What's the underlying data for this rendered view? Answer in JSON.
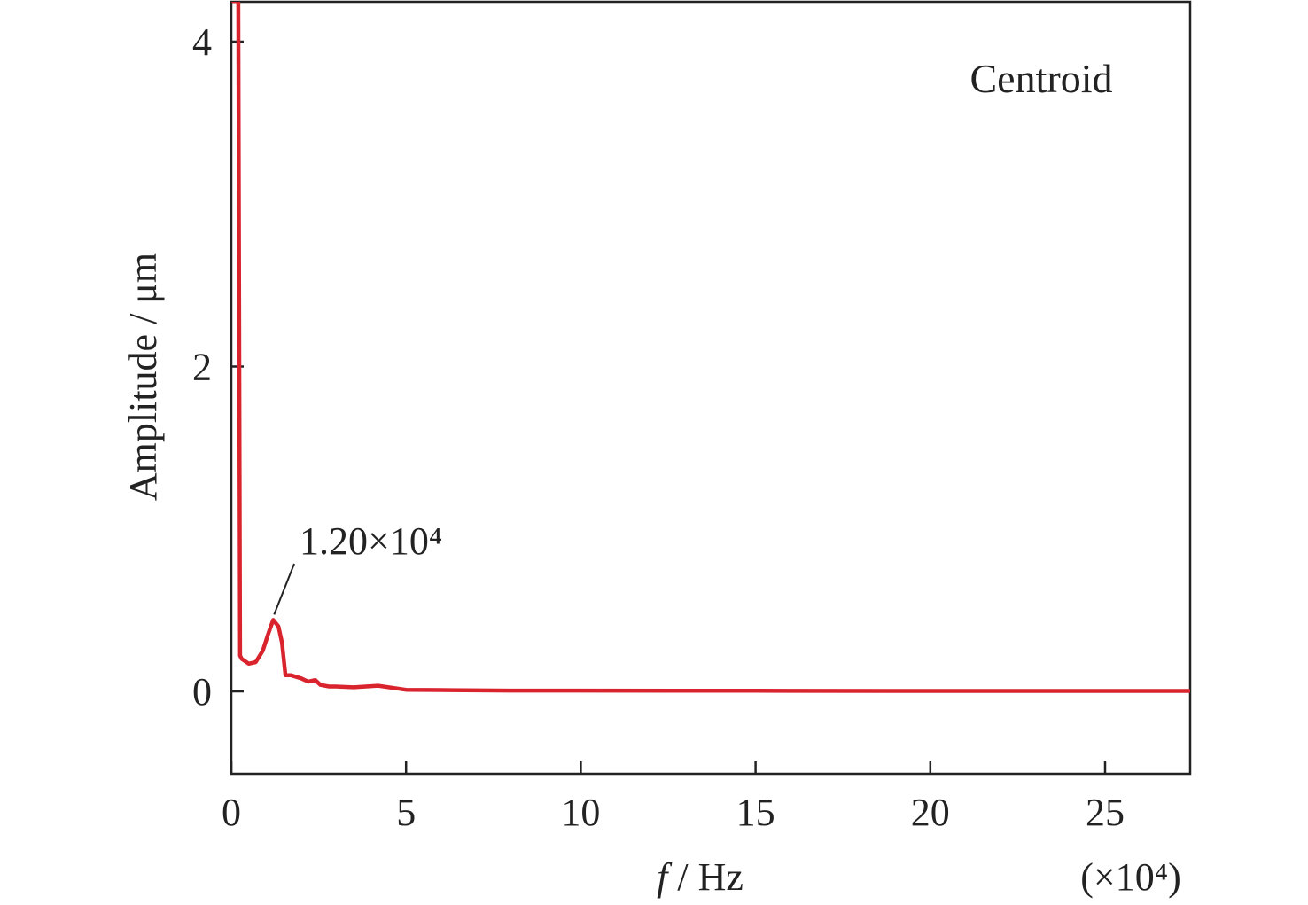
{
  "chart_data": {
    "type": "line",
    "title": "",
    "xlabel_italic": "f",
    "xlabel_rest": " / Hz",
    "x_scale_note": "(×10⁴)",
    "ylabel": "Amplitude / μm",
    "series_label": "Centroid",
    "xlim": [
      0,
      27.4
    ],
    "ylim": [
      -0.5,
      4.25
    ],
    "x_ticks": [
      0,
      5,
      10,
      15,
      20,
      25
    ],
    "y_ticks": [
      0,
      2,
      4
    ],
    "grid": false,
    "legend": "top-right",
    "line_color": "#d9232d",
    "annotation": {
      "text": "1.20×10⁴",
      "x": 1.2,
      "y": 0.44
    },
    "series": [
      {
        "name": "Centroid",
        "x": [
          0.05,
          0.12,
          0.2,
          0.25,
          0.3,
          0.5,
          0.7,
          0.9,
          1.05,
          1.2,
          1.35,
          1.45,
          1.55,
          1.7,
          2.0,
          2.2,
          2.4,
          2.55,
          2.8,
          3.0,
          3.5,
          4.2,
          5.0,
          6.0,
          8.0,
          10.0,
          15.0,
          20.0,
          25.0,
          27.4
        ],
        "y": [
          4.25,
          4.25,
          4.25,
          0.22,
          0.2,
          0.17,
          0.18,
          0.25,
          0.35,
          0.44,
          0.4,
          0.3,
          0.1,
          0.1,
          0.08,
          0.06,
          0.07,
          0.04,
          0.03,
          0.03,
          0.025,
          0.035,
          0.01,
          0.008,
          0.005,
          0.005,
          0.004,
          0.003,
          0.003,
          0.003
        ]
      }
    ]
  }
}
